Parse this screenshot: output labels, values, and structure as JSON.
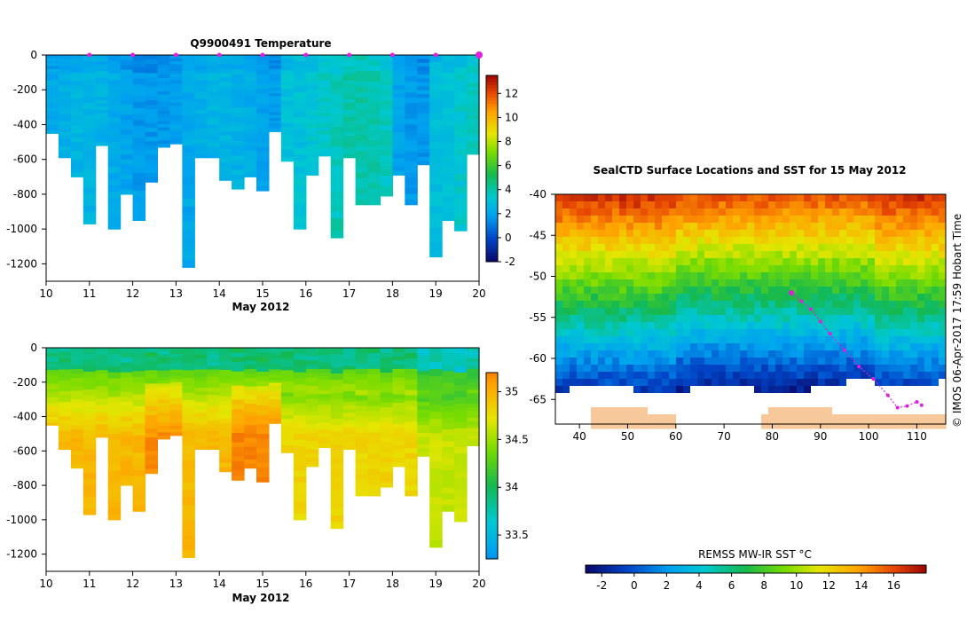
{
  "chart_data": [
    {
      "type": "heatmap",
      "title": "Q9900491  Temperature",
      "xlabel": "May 2012",
      "ylabel": "",
      "xlim": [
        10,
        20
      ],
      "ylim": [
        -1300,
        0
      ],
      "x_ticks": [
        "10",
        "11",
        "12",
        "13",
        "14",
        "15",
        "16",
        "17",
        "18",
        "19",
        "20"
      ],
      "y_ticks": [
        "0",
        "-200",
        "-400",
        "-600",
        "-800",
        "-1000",
        "-1200"
      ],
      "profile_max_depths": [
        450,
        590,
        700,
        970,
        520,
        1000,
        800,
        950,
        730,
        530,
        510,
        1220,
        590,
        590,
        720,
        770,
        700,
        780,
        440,
        610,
        1000,
        690,
        580,
        1050,
        590,
        860,
        860,
        810,
        690,
        860,
        630,
        1160,
        950,
        1010,
        570
      ],
      "surface_markers": [
        11,
        12,
        13,
        14,
        15,
        16,
        17,
        18,
        19,
        20
      ],
      "colorbar": {
        "ticks": [
          "-2",
          "0",
          "2",
          "4",
          "6",
          "8",
          "10",
          "12"
        ],
        "range": [
          -2,
          13.5
        ]
      }
    },
    {
      "type": "heatmap",
      "title": "",
      "xlabel": "May 2012",
      "ylabel": "",
      "xlim": [
        10,
        20
      ],
      "ylim": [
        -1300,
        0
      ],
      "x_ticks": [
        "10",
        "11",
        "12",
        "13",
        "14",
        "15",
        "16",
        "17",
        "18",
        "19",
        "20"
      ],
      "y_ticks": [
        "0",
        "-200",
        "-400",
        "-600",
        "-800",
        "-1000",
        "-1200"
      ],
      "colorbar": {
        "ticks": [
          "33.5",
          "34",
          "34.5",
          "35"
        ],
        "range": [
          33.25,
          35.2
        ]
      }
    },
    {
      "type": "heatmap",
      "title": "SealCTD Surface Locations and SST for 15 May 2012",
      "xlabel": "",
      "ylabel": "",
      "xlim": [
        35,
        116
      ],
      "ylim": [
        -68,
        -40
      ],
      "x_ticks": [
        "40",
        "50",
        "60",
        "70",
        "80",
        "90",
        "100",
        "110"
      ],
      "y_ticks": [
        "-40",
        "-45",
        "-50",
        "-55",
        "-60",
        "-65"
      ],
      "track": [
        [
          84,
          -52
        ],
        [
          86,
          -53
        ],
        [
          88,
          -54
        ],
        [
          90,
          -55.5
        ],
        [
          92,
          -57
        ],
        [
          95,
          -59
        ],
        [
          98,
          -61
        ],
        [
          101,
          -62.5
        ],
        [
          104,
          -64.5
        ],
        [
          106,
          -66
        ],
        [
          108,
          -65.8
        ],
        [
          110,
          -65.3
        ],
        [
          111,
          -65.7
        ]
      ],
      "colorbar": {
        "label": "REMSS MW-IR SST °C",
        "ticks": [
          "-2",
          "0",
          "2",
          "4",
          "6",
          "8",
          "10",
          "12",
          "14",
          "16"
        ],
        "range": [
          -3,
          18
        ]
      },
      "side_label": "©  IMOS 06-Apr-2017 17:59 Hobart Time"
    }
  ]
}
